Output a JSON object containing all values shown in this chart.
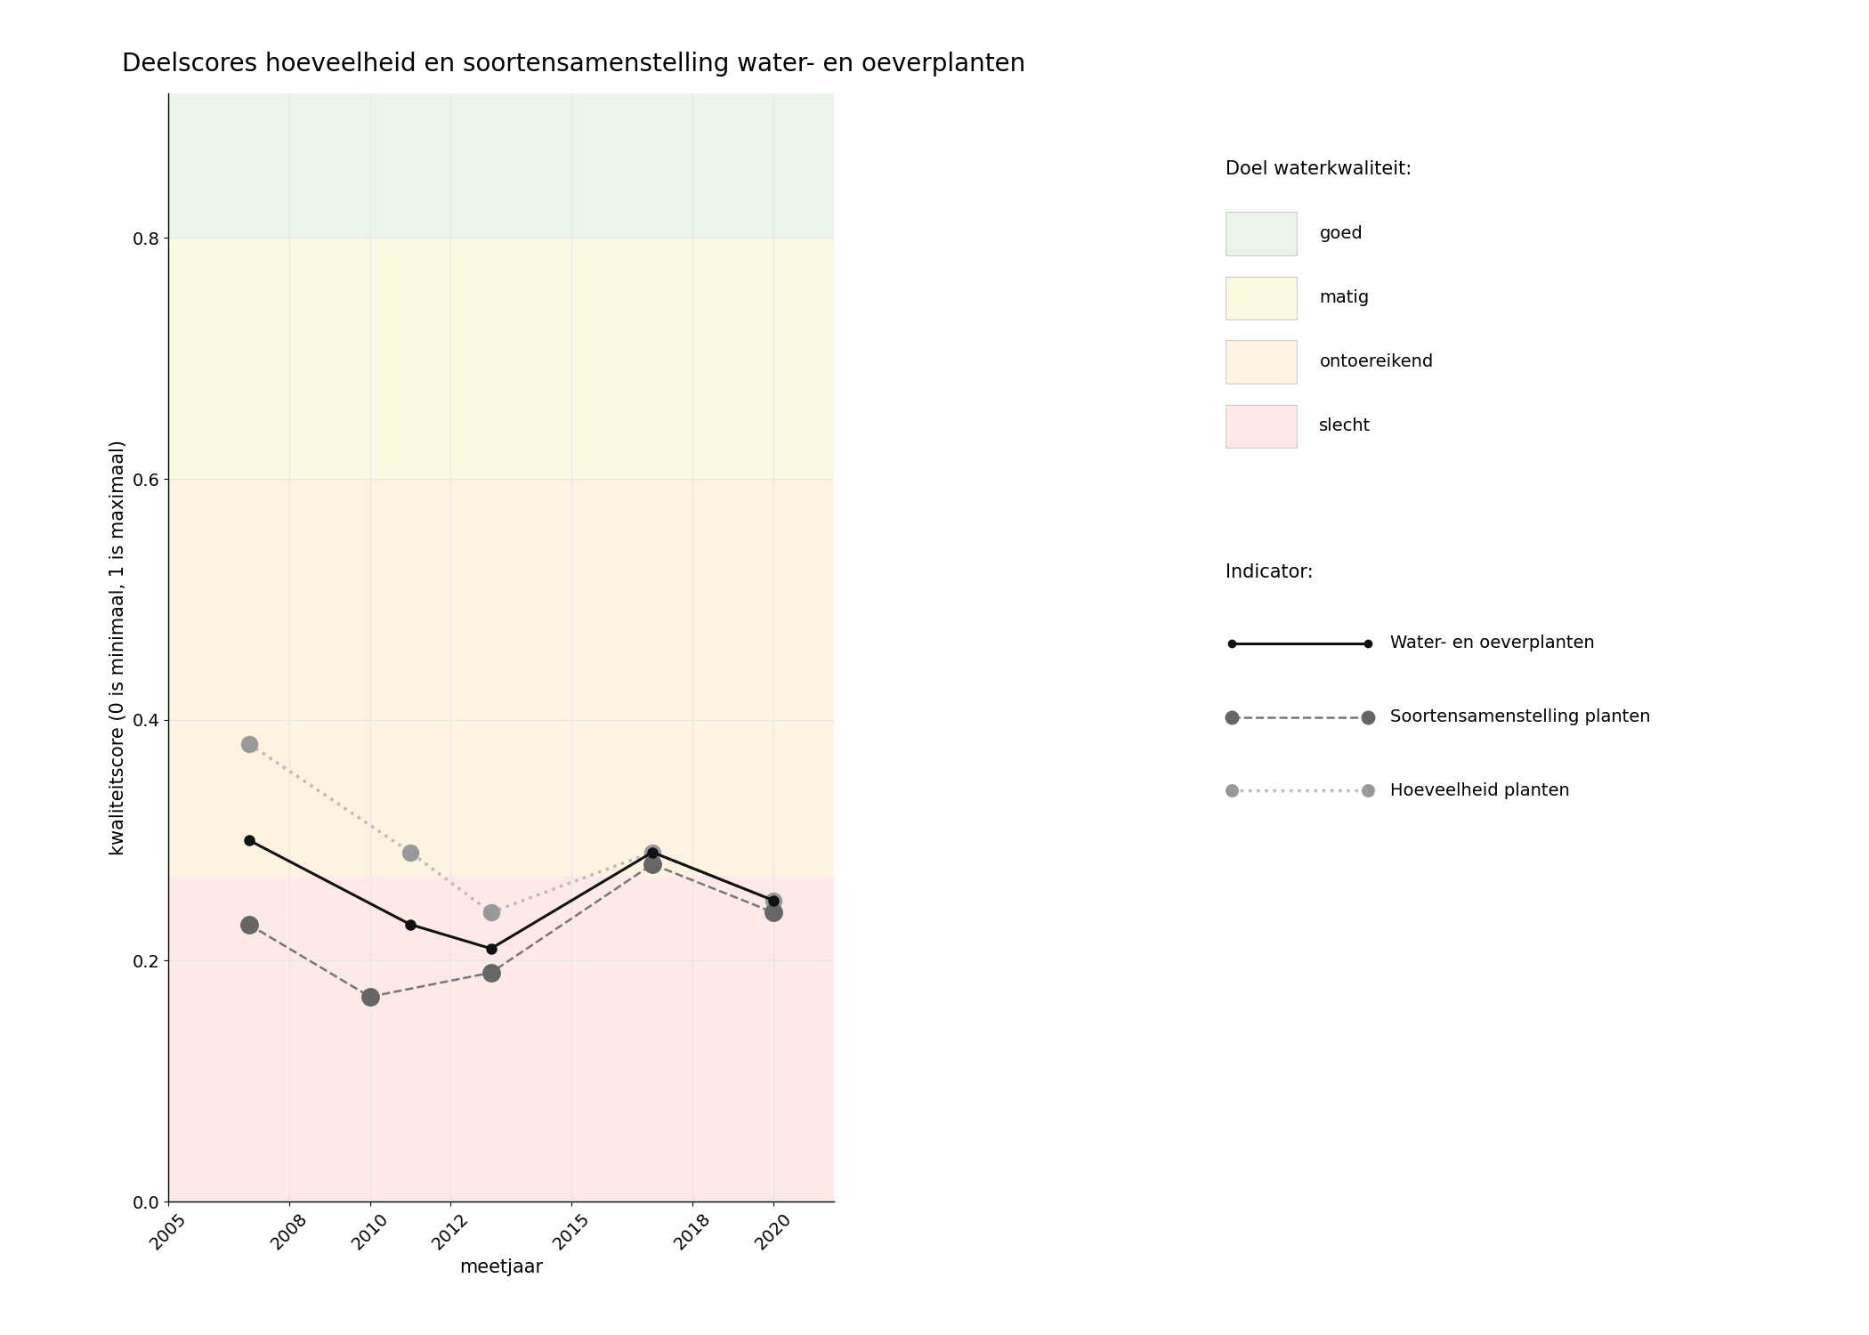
{
  "title": "Deelscores hoeveelheid en soortensamenstelling water- en oeverplanten",
  "xlabel": "meetjaar",
  "ylabel": "kwaliteitscore (0 is minimaal, 1 is maximaal)",
  "xlim": [
    2005,
    2021.5
  ],
  "ylim": [
    0,
    0.92
  ],
  "xticks": [
    2005,
    2008,
    2010,
    2012,
    2015,
    2018,
    2020
  ],
  "yticks": [
    0.0,
    0.2,
    0.4,
    0.6,
    0.8
  ],
  "bg_color": "#ffffff",
  "plot_bg_color": "#f5f5f5",
  "grid_color": "#e8e8e8",
  "zones": [
    {
      "label": "goed",
      "ymin": 0.8,
      "ymax": 0.92,
      "color": "#e8f5e8"
    },
    {
      "label": "matig",
      "ymin": 0.6,
      "ymax": 0.8,
      "color": "#fafae0"
    },
    {
      "label": "ontoereikend",
      "ymin": 0.27,
      "ymax": 0.6,
      "color": "#fef3e0"
    },
    {
      "label": "slecht",
      "ymin": 0.0,
      "ymax": 0.27,
      "color": "#ffe8e8"
    }
  ],
  "series": [
    {
      "label": "Water- en oeverplanten",
      "x": [
        2007,
        2011,
        2013,
        2017,
        2020
      ],
      "y": [
        0.3,
        0.23,
        0.21,
        0.29,
        0.25
      ],
      "color": "#111111",
      "linestyle": "solid",
      "linewidth": 2.2,
      "markersize": 8,
      "marker": "o",
      "markerfacecolor": "#111111",
      "zorder": 5
    },
    {
      "label": "Soortensamenstelling planten",
      "x": [
        2007,
        2010,
        2013,
        2017,
        2020
      ],
      "y": [
        0.23,
        0.17,
        0.19,
        0.28,
        0.24
      ],
      "color": "#777777",
      "linestyle": "dashed",
      "linewidth": 1.8,
      "markersize": 14,
      "marker": "o",
      "markerfacecolor": "#666666",
      "zorder": 4
    },
    {
      "label": "Hoeveelheid planten",
      "x": [
        2007,
        2011,
        2013,
        2017,
        2020
      ],
      "y": [
        0.38,
        0.29,
        0.24,
        0.29,
        0.25
      ],
      "color": "#bbbbbb",
      "linestyle": "dotted",
      "linewidth": 2.5,
      "markersize": 13,
      "marker": "o",
      "markerfacecolor": "#999999",
      "zorder": 3
    }
  ],
  "legend_zone_title": "Doel waterkwaliteit:",
  "legend_indicator_title": "Indicator:",
  "zone_legend_colors": [
    "#e8f5e8",
    "#fafae0",
    "#fef3e0",
    "#ffe8e8"
  ],
  "zone_legend_labels": [
    "goed",
    "matig",
    "ontoereikend",
    "slecht"
  ],
  "title_fontsize": 20,
  "label_fontsize": 15,
  "tick_fontsize": 14,
  "legend_fontsize": 14,
  "legend_title_fontsize": 15
}
